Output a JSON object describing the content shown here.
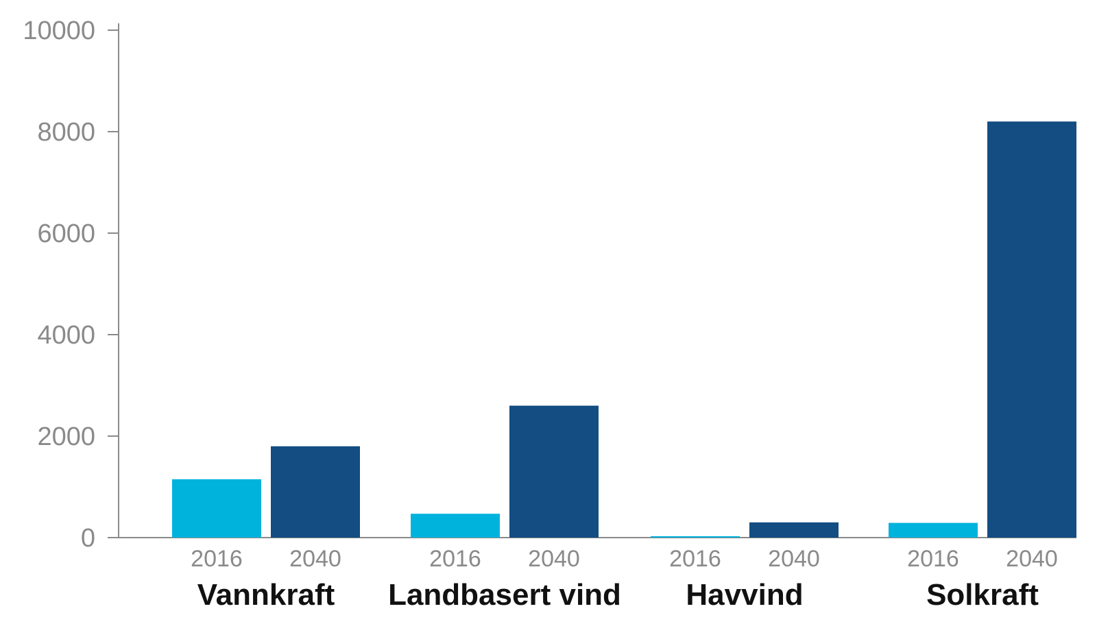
{
  "chart_data": {
    "type": "bar",
    "title": "",
    "xlabel": "",
    "ylabel": "",
    "ylim": [
      0,
      10000
    ],
    "yticks": [
      0,
      2000,
      4000,
      6000,
      8000,
      10000
    ],
    "grid": false,
    "legend": "none",
    "groups": [
      {
        "label": "Vannkraft",
        "bars": [
          {
            "year": "2016",
            "value": 1150,
            "color": "#00b3dc"
          },
          {
            "year": "2040",
            "value": 1800,
            "color": "#134d82"
          }
        ]
      },
      {
        "label": "Landbasert vind",
        "bars": [
          {
            "year": "2016",
            "value": 470,
            "color": "#00b3dc"
          },
          {
            "year": "2040",
            "value": 2600,
            "color": "#134d82"
          }
        ]
      },
      {
        "label": "Havvind",
        "bars": [
          {
            "year": "2016",
            "value": 15,
            "color": "#00b3dc"
          },
          {
            "year": "2040",
            "value": 300,
            "color": "#134d82"
          }
        ]
      },
      {
        "label": "Solkraft",
        "bars": [
          {
            "year": "2016",
            "value": 290,
            "color": "#00b3dc"
          },
          {
            "year": "2040",
            "value": 8200,
            "color": "#134d82"
          }
        ]
      }
    ]
  }
}
